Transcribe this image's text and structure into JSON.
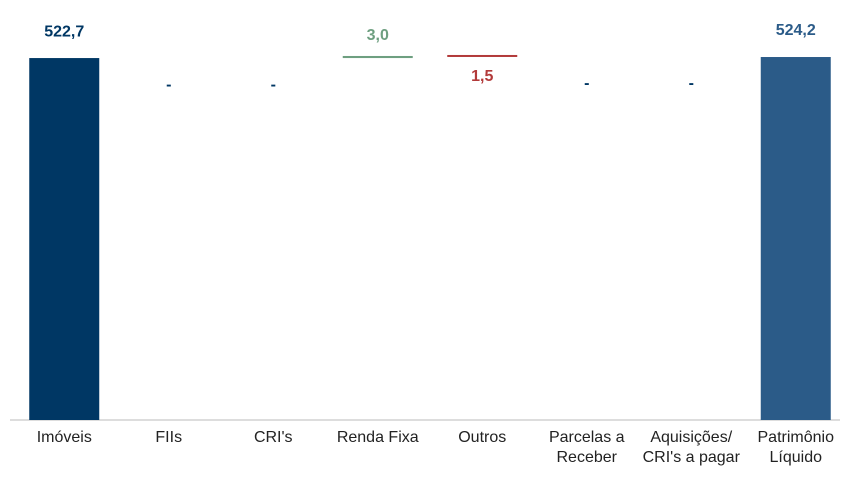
{
  "chart_data": {
    "type": "waterfall",
    "categories": [
      "Imóveis",
      "FIIs",
      "CRI's",
      "Renda Fixa",
      "Outros",
      "Parcelas a Receber",
      "Aquisições/ CRI's a pagar",
      "Patrimônio Líquido"
    ],
    "values": [
      522.7,
      0,
      0,
      3.0,
      -1.5,
      0,
      0,
      524.2
    ],
    "value_labels": [
      "522,7",
      "-",
      "-",
      "3,0",
      "1,5",
      "-",
      "-",
      "524,2"
    ],
    "measure": [
      "absolute",
      "relative",
      "relative",
      "relative",
      "relative",
      "relative",
      "relative",
      "total"
    ],
    "colors": {
      "absolute": "#003764",
      "total": "#2b5b88",
      "increase": "#6e9f80",
      "decrease": "#b23a3a",
      "neutral": "#003764"
    },
    "ylim": [
      0,
      530
    ]
  }
}
